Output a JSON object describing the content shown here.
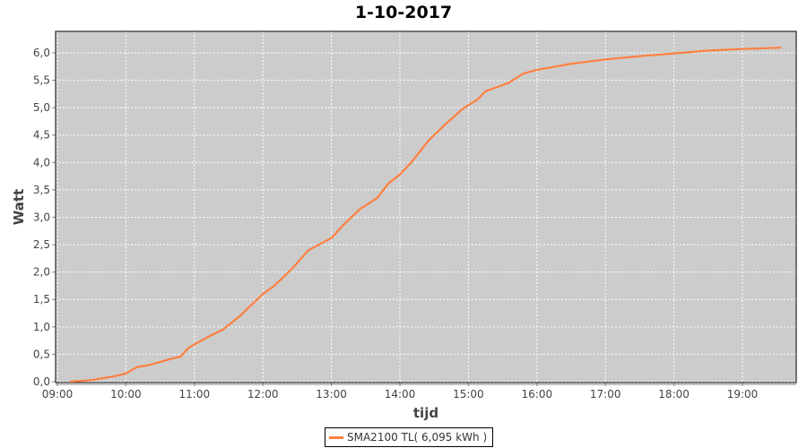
{
  "chart_data": {
    "type": "line",
    "title": "1-10-2017",
    "xlabel": "tijd",
    "ylabel": "Watt",
    "xlim": [
      "09:00",
      "19:50"
    ],
    "ylim": [
      0,
      6.3
    ],
    "x_ticks": [
      "09:00",
      "10:00",
      "11:00",
      "12:00",
      "13:00",
      "14:00",
      "15:00",
      "16:00",
      "17:00",
      "18:00",
      "19:00"
    ],
    "y_ticks": [
      "0,0",
      "0,5",
      "1,0",
      "1,5",
      "2,0",
      "2,5",
      "3,0",
      "3,5",
      "4,0",
      "4,5",
      "5,0",
      "5,5",
      "6,0"
    ],
    "grid": true,
    "legend_position": "bottom",
    "plot_background": "#cccccc",
    "series": [
      {
        "name": "SMA2100 TL( 6,095 kWh )",
        "color": "#ff7f3f",
        "x": [
          "09:11",
          "09:30",
          "09:50",
          "10:00",
          "10:10",
          "10:20",
          "10:40",
          "10:48",
          "10:55",
          "11:00",
          "11:15",
          "11:25",
          "11:40",
          "12:00",
          "12:10",
          "12:25",
          "12:40",
          "13:00",
          "13:10",
          "13:25",
          "13:40",
          "13:50",
          "14:00",
          "14:10",
          "14:25",
          "14:40",
          "14:55",
          "15:08",
          "15:15",
          "15:35",
          "15:48",
          "16:00",
          "16:30",
          "17:00",
          "17:30",
          "18:00",
          "18:30",
          "19:00",
          "19:34"
        ],
        "y": [
          0,
          0.03,
          0.1,
          0.15,
          0.27,
          0.3,
          0.42,
          0.46,
          0.62,
          0.68,
          0.85,
          0.95,
          1.2,
          1.6,
          1.75,
          2.05,
          2.4,
          2.62,
          2.85,
          3.15,
          3.35,
          3.62,
          3.78,
          4.0,
          4.4,
          4.7,
          4.98,
          5.15,
          5.3,
          5.45,
          5.62,
          5.69,
          5.8,
          5.88,
          5.94,
          5.99,
          6.04,
          6.07,
          6.095
        ]
      }
    ]
  }
}
